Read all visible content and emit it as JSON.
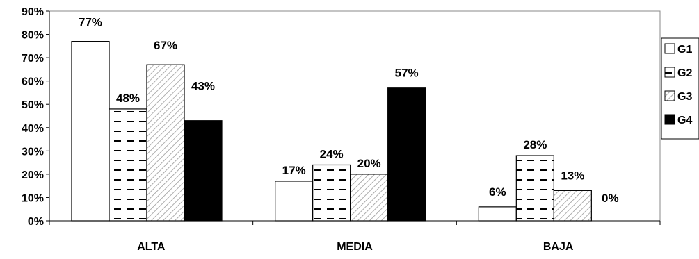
{
  "chart_data": {
    "type": "bar",
    "title": "",
    "xlabel": "",
    "ylabel": "",
    "categories": [
      "ALTA",
      "MEDIA",
      "BAJA"
    ],
    "ylim": [
      0,
      90
    ],
    "yticks": [
      0,
      10,
      20,
      30,
      40,
      50,
      60,
      70,
      80,
      90
    ],
    "ytick_labels": [
      "0%",
      "10%",
      "20%",
      "30%",
      "40%",
      "50%",
      "60%",
      "70%",
      "80%",
      "90%"
    ],
    "grid": false,
    "legend_position": "right",
    "series": [
      {
        "name": "G1",
        "values": [
          77,
          17,
          6
        ],
        "labels": [
          "77%",
          "17%",
          "6%"
        ],
        "pattern": "white"
      },
      {
        "name": "G2",
        "values": [
          48,
          24,
          28
        ],
        "labels": [
          "48%",
          "24%",
          "28%"
        ],
        "pattern": "dashed-horizontal"
      },
      {
        "name": "G3",
        "values": [
          67,
          20,
          13
        ],
        "labels": [
          "67%",
          "20%",
          "13%"
        ],
        "pattern": "diagonal-hatch"
      },
      {
        "name": "G4",
        "values": [
          43,
          57,
          0
        ],
        "labels": [
          "43%",
          "57%",
          "0%"
        ],
        "pattern": "black"
      }
    ]
  }
}
